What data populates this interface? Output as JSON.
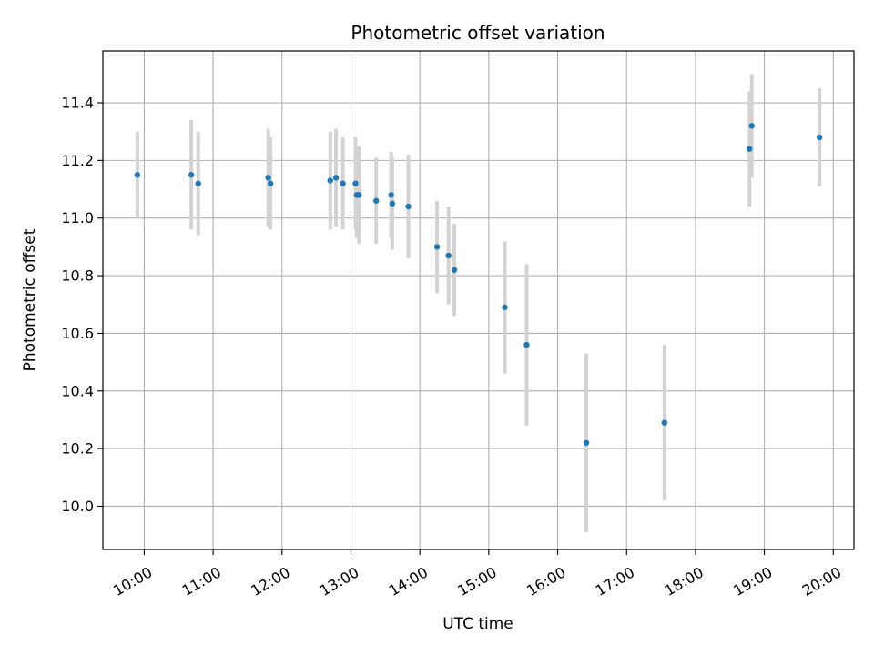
{
  "chart_data": {
    "type": "scatter",
    "title": "Photometric offset variation",
    "xlabel": "UTC time",
    "ylabel": "Photometric offset",
    "grid": true,
    "xlim": [
      "09:24",
      "20:18"
    ],
    "ylim": [
      9.85,
      11.58
    ],
    "x_ticks": [
      "10:00",
      "11:00",
      "12:00",
      "13:00",
      "14:00",
      "15:00",
      "16:00",
      "17:00",
      "18:00",
      "19:00",
      "20:00"
    ],
    "y_ticks": [
      "10.0",
      "10.2",
      "10.4",
      "10.6",
      "10.8",
      "11.0",
      "11.2",
      "11.4"
    ],
    "errorbar_color": "#d3d3d3",
    "marker_color": "#1f77b4",
    "points": [
      {
        "x": "09:54",
        "y": 11.15,
        "yerr": 0.15
      },
      {
        "x": "10:41",
        "y": 11.15,
        "yerr": 0.19
      },
      {
        "x": "10:47",
        "y": 11.12,
        "yerr": 0.18
      },
      {
        "x": "11:48",
        "y": 11.14,
        "yerr": 0.17
      },
      {
        "x": "11:50",
        "y": 11.12,
        "yerr": 0.16
      },
      {
        "x": "12:42",
        "y": 11.13,
        "yerr": 0.17
      },
      {
        "x": "12:47",
        "y": 11.14,
        "yerr": 0.17
      },
      {
        "x": "12:53",
        "y": 11.12,
        "yerr": 0.16
      },
      {
        "x": "13:04",
        "y": 11.12,
        "yerr": 0.16
      },
      {
        "x": "13:05",
        "y": 11.08,
        "yerr": 0.15
      },
      {
        "x": "13:07",
        "y": 11.08,
        "yerr": 0.17
      },
      {
        "x": "13:22",
        "y": 11.06,
        "yerr": 0.15
      },
      {
        "x": "13:35",
        "y": 11.08,
        "yerr": 0.15
      },
      {
        "x": "13:36",
        "y": 11.05,
        "yerr": 0.16
      },
      {
        "x": "13:50",
        "y": 11.04,
        "yerr": 0.18
      },
      {
        "x": "14:15",
        "y": 10.9,
        "yerr": 0.16
      },
      {
        "x": "14:25",
        "y": 10.87,
        "yerr": 0.17
      },
      {
        "x": "14:30",
        "y": 10.82,
        "yerr": 0.16
      },
      {
        "x": "15:14",
        "y": 10.69,
        "yerr": 0.23
      },
      {
        "x": "15:33",
        "y": 10.56,
        "yerr": 0.28
      },
      {
        "x": "16:25",
        "y": 10.22,
        "yerr": 0.31
      },
      {
        "x": "17:33",
        "y": 10.29,
        "yerr": 0.27
      },
      {
        "x": "18:47",
        "y": 11.24,
        "yerr": 0.2
      },
      {
        "x": "18:49",
        "y": 11.32,
        "yerr": 0.18
      },
      {
        "x": "19:48",
        "y": 11.28,
        "yerr": 0.17
      }
    ]
  }
}
